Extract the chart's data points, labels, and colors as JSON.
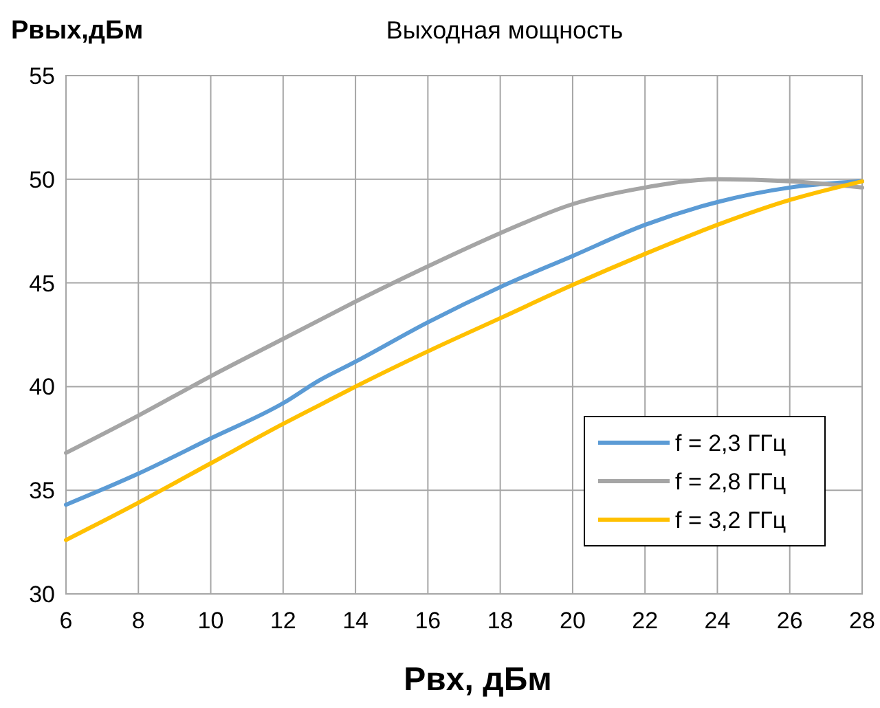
{
  "chart_data": {
    "type": "line",
    "title": "Выходная мощность",
    "xlabel": "Pвх, дБм",
    "ylabel": "Pвых,дБм",
    "x": [
      6,
      8,
      10,
      12,
      13,
      14,
      16,
      18,
      20,
      22,
      24,
      26,
      28
    ],
    "series": [
      {
        "name": "f = 2,3 ГГц",
        "color": "#5b9bd5",
        "values": [
          34.3,
          35.8,
          37.5,
          39.2,
          40.3,
          41.2,
          43.1,
          44.8,
          46.3,
          47.8,
          48.9,
          49.6,
          49.9
        ]
      },
      {
        "name": "f = 2,8 ГГц",
        "color": "#a5a5a5",
        "values": [
          36.8,
          38.6,
          40.5,
          42.3,
          43.2,
          44.1,
          45.8,
          47.4,
          48.8,
          49.6,
          50.0,
          49.9,
          49.6
        ]
      },
      {
        "name": "f = 3,2 ГГц",
        "color": "#ffc000",
        "values": [
          32.6,
          34.4,
          36.3,
          38.2,
          39.1,
          40.0,
          41.7,
          43.3,
          44.9,
          46.4,
          47.8,
          49.0,
          49.9
        ]
      }
    ],
    "xlim": [
      6,
      28
    ],
    "xticks": [
      6,
      8,
      10,
      12,
      14,
      16,
      18,
      20,
      22,
      24,
      26,
      28
    ],
    "ylim": [
      30,
      55
    ],
    "yticks": [
      30,
      35,
      40,
      45,
      50,
      55
    ],
    "grid": true,
    "legend": "bottom right",
    "marker": "none",
    "line_style": "solid"
  }
}
